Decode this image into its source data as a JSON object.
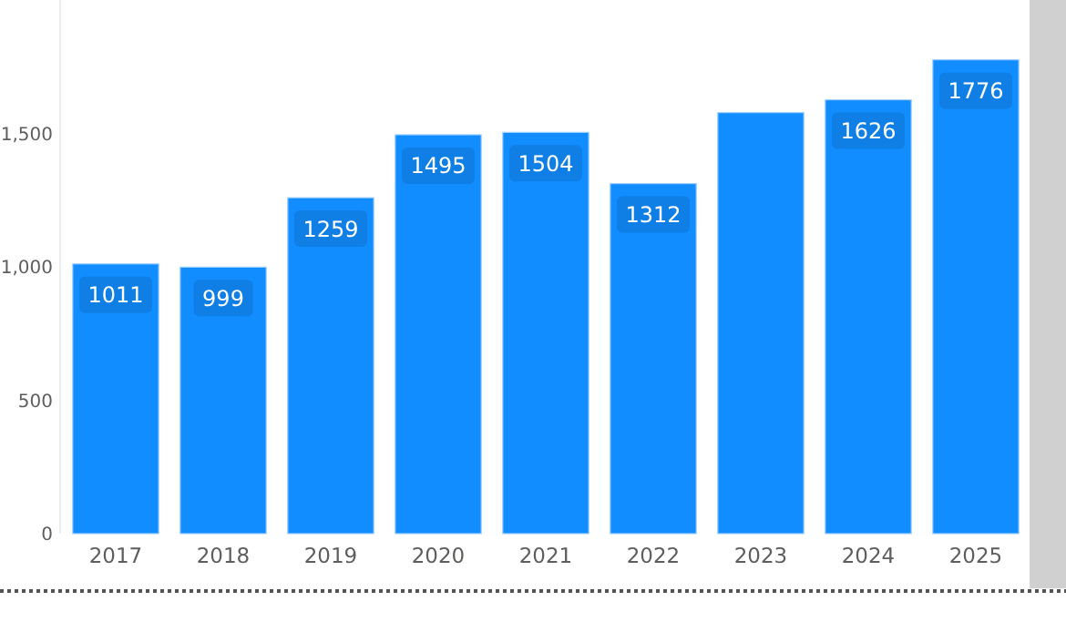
{
  "chart_data": {
    "type": "bar",
    "categories": [
      "2017",
      "2018",
      "2019",
      "2020",
      "2021",
      "2022",
      "2023",
      "2024",
      "2025"
    ],
    "values": [
      1011,
      999,
      1259,
      1495,
      1504,
      1312,
      1578,
      1626,
      1776
    ],
    "value_labels": [
      "1011",
      "999",
      "1259",
      "1495",
      "1504",
      "1312",
      null,
      "1626",
      "1776"
    ],
    "color": "#118dff",
    "ylim": [
      0,
      2000
    ],
    "yticks": [
      0,
      {
        "value": 500,
        "label": "500"
      },
      {
        "value": 1000,
        "label": "1,000"
      },
      {
        "value": 1500,
        "label": "1,500"
      }
    ],
    "grid": false
  }
}
